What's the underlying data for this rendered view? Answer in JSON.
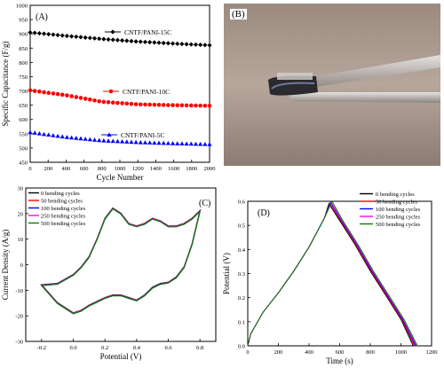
{
  "chart_data": [
    {
      "panel": "(A)",
      "type": "scatter",
      "xlabel": "Cycle Number",
      "ylabel": "Specific Capacitance (F/g)",
      "xlim": [
        0,
        2000
      ],
      "ylim": [
        450,
        1000
      ],
      "xticks": [
        "0",
        "200",
        "400",
        "600",
        "800",
        "1000",
        "1200",
        "1400",
        "1600",
        "1800",
        "2000"
      ],
      "yticks": [
        "450",
        "500",
        "550",
        "600",
        "650",
        "700",
        "750",
        "800",
        "850",
        "900",
        "950",
        "1000"
      ],
      "legend_placement": "inline",
      "series": [
        {
          "name": "CNTF/PANI-15C",
          "color": "#000000",
          "marker": "diamond",
          "x": [
            0,
            400,
            800,
            1200,
            1600,
            2000
          ],
          "y": [
            905,
            893,
            882,
            873,
            866,
            860
          ]
        },
        {
          "name": "CNTF/PANI-10C",
          "color": "#ff0000",
          "marker": "circle",
          "x": [
            0,
            400,
            800,
            1200,
            1600,
            2000
          ],
          "y": [
            702,
            685,
            662,
            653,
            650,
            648
          ]
        },
        {
          "name": "CNTF/PANI-5C",
          "color": "#0000ff",
          "marker": "triangle",
          "x": [
            0,
            400,
            800,
            1200,
            1600,
            2000
          ],
          "y": [
            555,
            538,
            526,
            520,
            516,
            513
          ]
        }
      ]
    },
    {
      "panel": "(C)",
      "type": "line",
      "xlabel": "Potential (V)",
      "ylabel": "Current Density (A/g)",
      "xlim": [
        -0.3,
        0.9
      ],
      "ylim": [
        -30,
        30
      ],
      "xticks": [
        "-0.2",
        "0.0",
        "0.2",
        "0.4",
        "0.6",
        "0.8"
      ],
      "yticks": [
        "-30",
        "-20",
        "-10",
        "0",
        "10",
        "20",
        "30"
      ],
      "legend_placement": "top-left",
      "series_names": [
        "0 bending cycles",
        "50 bending cycles",
        "100 bending cycles",
        "250 bending cycles",
        "500 bending cycles"
      ],
      "series_colors": [
        "#000000",
        "#ff0000",
        "#0000ff",
        "#ff00ff",
        "#008000"
      ],
      "upper": {
        "x": [
          -0.2,
          -0.1,
          0.0,
          0.05,
          0.1,
          0.15,
          0.2,
          0.25,
          0.3,
          0.35,
          0.4,
          0.45,
          0.5,
          0.55,
          0.6,
          0.65,
          0.7,
          0.75,
          0.8
        ],
        "y": [
          -8,
          -7.5,
          -4,
          -1,
          3,
          10,
          18,
          22,
          20,
          16,
          15,
          16,
          18,
          17,
          15,
          15,
          16,
          18,
          21
        ]
      },
      "lower": {
        "x": [
          0.8,
          0.75,
          0.7,
          0.65,
          0.6,
          0.55,
          0.5,
          0.45,
          0.4,
          0.35,
          0.3,
          0.25,
          0.2,
          0.15,
          0.1,
          0.05,
          0.0,
          -0.1,
          -0.2
        ],
        "y": [
          21,
          8,
          -1,
          -5,
          -7,
          -7.5,
          -9,
          -12,
          -14,
          -13,
          -12,
          -12,
          -13,
          -14.5,
          -16,
          -18,
          -19,
          -15,
          -8
        ]
      }
    },
    {
      "panel": "(D)",
      "type": "line",
      "xlabel": "Time (s)",
      "ylabel": "Potential (V)",
      "xlim": [
        0,
        1200
      ],
      "ylim": [
        0,
        0.6
      ],
      "xticks": [
        "0",
        "200",
        "400",
        "600",
        "800",
        "1000",
        "1200"
      ],
      "yticks": [
        "0.0",
        "0.1",
        "0.2",
        "0.3",
        "0.4",
        "0.5",
        "0.6"
      ],
      "legend_placement": "top-right",
      "series": [
        {
          "name": "0 bending cycles",
          "color": "#000000",
          "x": [
            0,
            20,
            100,
            200,
            300,
            400,
            500,
            530,
            600,
            700,
            800,
            900,
            1000,
            1080
          ],
          "y": [
            0,
            0.05,
            0.14,
            0.22,
            0.31,
            0.41,
            0.53,
            0.59,
            0.52,
            0.42,
            0.31,
            0.21,
            0.11,
            0
          ]
        },
        {
          "name": "50 bending cycles",
          "color": "#ff0000",
          "x": [
            0,
            20,
            100,
            200,
            300,
            400,
            500,
            535,
            605,
            705,
            805,
            905,
            1005,
            1088
          ],
          "y": [
            0,
            0.05,
            0.14,
            0.22,
            0.31,
            0.41,
            0.53,
            0.59,
            0.52,
            0.42,
            0.31,
            0.21,
            0.11,
            0
          ]
        },
        {
          "name": "100 bending cycles",
          "color": "#0000ff",
          "x": [
            0,
            20,
            100,
            200,
            300,
            400,
            500,
            540,
            610,
            710,
            810,
            910,
            1010,
            1095
          ],
          "y": [
            0,
            0.05,
            0.14,
            0.22,
            0.31,
            0.41,
            0.53,
            0.595,
            0.52,
            0.42,
            0.31,
            0.21,
            0.11,
            0
          ]
        },
        {
          "name": "250 bending cycles",
          "color": "#ff00ff",
          "x": [
            0,
            20,
            100,
            200,
            300,
            400,
            500,
            545,
            615,
            715,
            815,
            915,
            1015,
            1102
          ],
          "y": [
            0,
            0.05,
            0.14,
            0.22,
            0.31,
            0.41,
            0.53,
            0.595,
            0.52,
            0.42,
            0.31,
            0.21,
            0.11,
            0
          ]
        },
        {
          "name": "500 bending cycles",
          "color": "#008000",
          "x": [
            0,
            20,
            100,
            200,
            300,
            400,
            500,
            550,
            620,
            720,
            820,
            920,
            1020,
            1108
          ],
          "y": [
            0,
            0.05,
            0.14,
            0.22,
            0.31,
            0.41,
            0.53,
            0.6,
            0.52,
            0.42,
            0.31,
            0.21,
            0.11,
            0
          ]
        }
      ]
    }
  ],
  "photo": {
    "panel": "(B)"
  }
}
